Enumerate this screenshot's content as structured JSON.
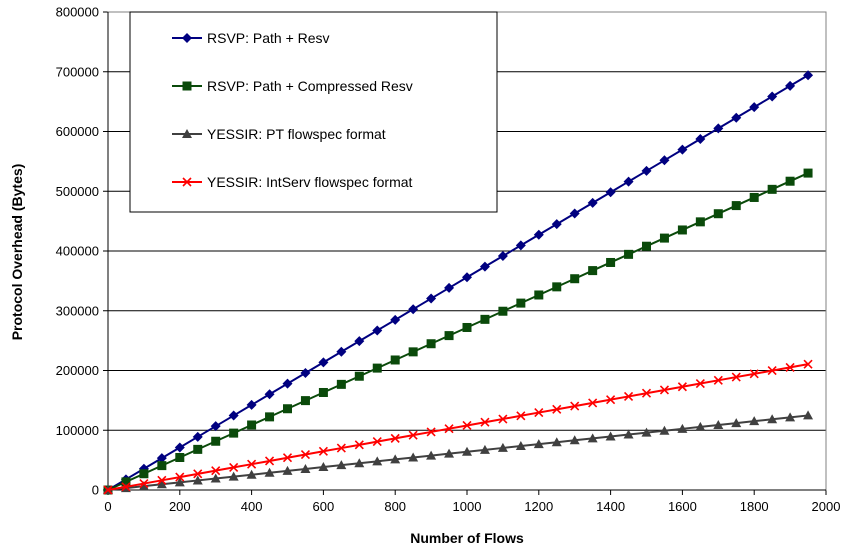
{
  "chart_data": {
    "type": "line",
    "title": "",
    "xlabel": "Number of Flows",
    "ylabel": "Protocol Overhead (Bytes)",
    "xlim": [
      0,
      2000
    ],
    "ylim": [
      0,
      800000
    ],
    "x_ticks": [
      "0",
      "200",
      "400",
      "600",
      "800",
      "1000",
      "1200",
      "1400",
      "1600",
      "1800",
      "2000"
    ],
    "y_ticks": [
      "0",
      "100000",
      "200000",
      "300000",
      "400000",
      "500000",
      "600000",
      "700000",
      "800000"
    ],
    "grid": "horizontal",
    "legend_position": "top-left",
    "x": [
      0,
      50,
      100,
      150,
      200,
      250,
      300,
      350,
      400,
      450,
      500,
      550,
      600,
      650,
      700,
      750,
      800,
      850,
      900,
      950,
      1000,
      1050,
      1100,
      1150,
      1200,
      1250,
      1300,
      1350,
      1400,
      1450,
      1500,
      1550,
      1600,
      1650,
      1700,
      1750,
      1800,
      1850,
      1900,
      1950
    ],
    "series": [
      {
        "name": "RSVP: Path + Resv",
        "color": "#000080",
        "marker": "diamond",
        "values": [
          0,
          17800,
          35600,
          53400,
          71200,
          89000,
          106800,
          124600,
          142400,
          160200,
          178000,
          195800,
          213600,
          231400,
          249200,
          267000,
          284800,
          302600,
          320400,
          338200,
          356000,
          373800,
          391600,
          409400,
          427200,
          445000,
          462800,
          480600,
          498400,
          516200,
          534000,
          551800,
          569600,
          587400,
          605200,
          623000,
          640800,
          658600,
          676400,
          694200
        ]
      },
      {
        "name": "RSVP: Path + Compressed Resv",
        "color": "#0a4a0a",
        "marker": "square",
        "values": [
          0,
          13600,
          27200,
          40800,
          54400,
          68000,
          81600,
          95200,
          108800,
          122400,
          136000,
          149600,
          163200,
          176800,
          190400,
          204000,
          217600,
          231200,
          244800,
          258400,
          272000,
          285600,
          299200,
          312800,
          326400,
          340000,
          353600,
          367200,
          380800,
          394400,
          408000,
          421600,
          435200,
          448800,
          462400,
          476000,
          489600,
          503200,
          516800,
          530400
        ]
      },
      {
        "name": "YESSIR: PT flowspec format",
        "color": "#404040",
        "marker": "triangle",
        "values": [
          0,
          3200,
          6400,
          9600,
          12800,
          16000,
          19200,
          22400,
          25600,
          28800,
          32000,
          35200,
          38400,
          41600,
          44800,
          48000,
          51200,
          54400,
          57600,
          60800,
          64000,
          67200,
          70400,
          73600,
          76800,
          80000,
          83200,
          86400,
          89600,
          92800,
          96000,
          99200,
          102400,
          105600,
          108800,
          112000,
          115200,
          118400,
          121600,
          124800
        ]
      },
      {
        "name": "YESSIR: IntServ flowspec format",
        "color": "#ff0000",
        "marker": "x",
        "values": [
          0,
          5400,
          10800,
          16200,
          21600,
          27000,
          32400,
          37800,
          43200,
          48600,
          54000,
          59400,
          64800,
          70200,
          75600,
          81000,
          86400,
          91800,
          97200,
          102600,
          108000,
          113400,
          118800,
          124200,
          129600,
          135000,
          140400,
          145800,
          151200,
          156600,
          162000,
          167400,
          172800,
          178200,
          183600,
          189000,
          194400,
          199800,
          205200,
          210600
        ]
      }
    ]
  }
}
